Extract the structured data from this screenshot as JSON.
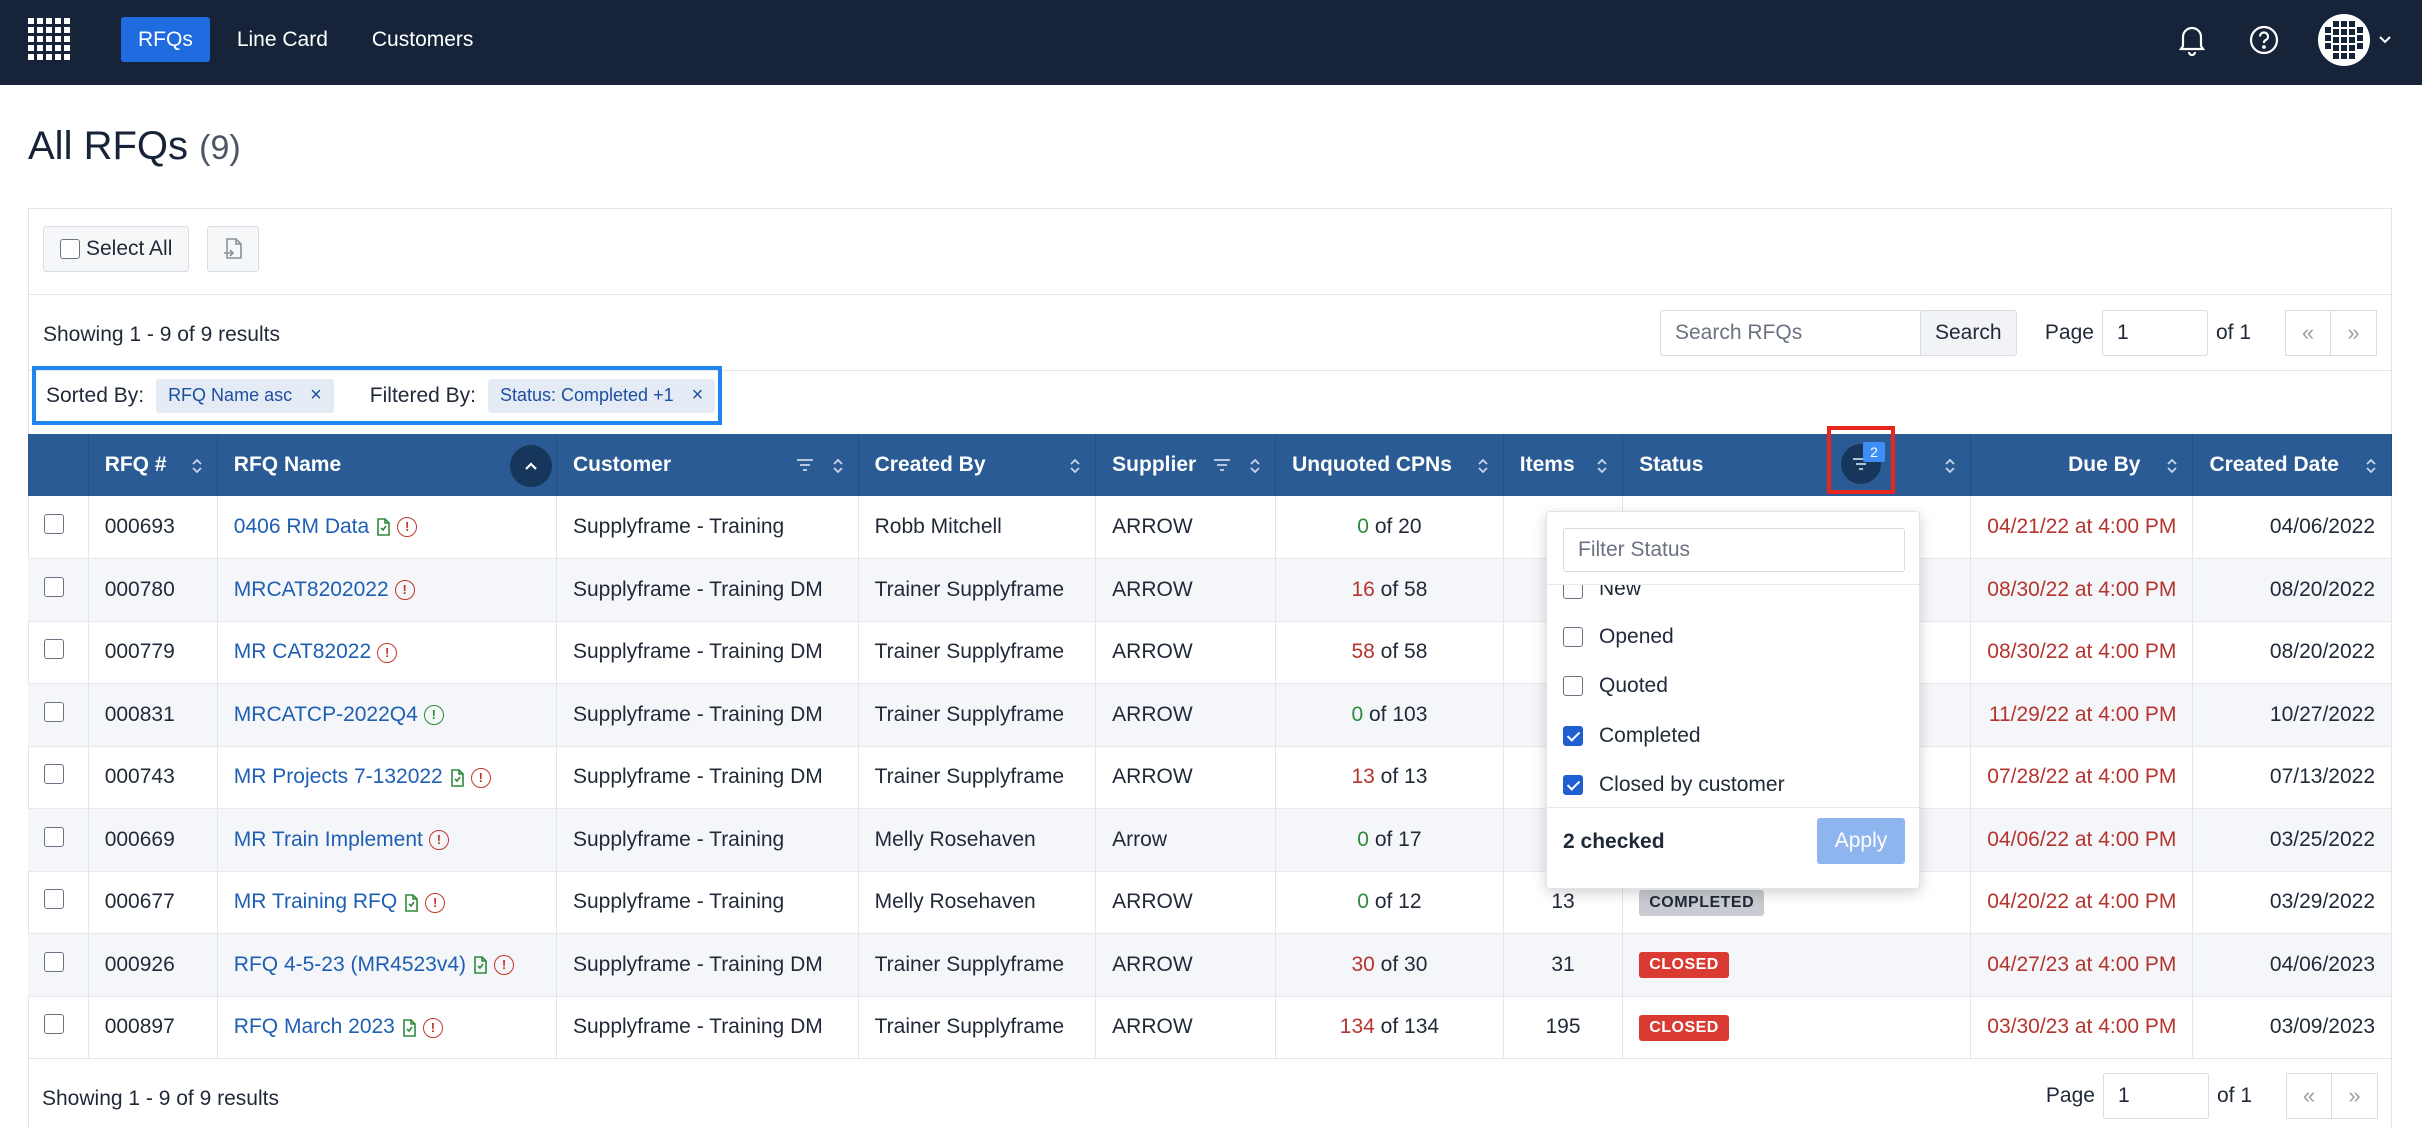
{
  "nav": {
    "links": [
      {
        "label": "RFQs",
        "active": true
      },
      {
        "label": "Line Card",
        "active": false
      },
      {
        "label": "Customers",
        "active": false
      }
    ],
    "icons": [
      "bell-icon",
      "help-icon",
      "avatar"
    ]
  },
  "page": {
    "title": "All RFQs",
    "count": "(9)"
  },
  "toolbar": {
    "select_all_label": "Select All"
  },
  "results": {
    "summary": "Showing 1 - 9 of 9 results",
    "search_placeholder": "Search RFQs",
    "search_button": "Search",
    "page_label": "Page",
    "page_value": "1",
    "page_of": "of 1",
    "prev": "«",
    "next": "»"
  },
  "chips": {
    "sorted_label": "Sorted By:",
    "sorted_value": "RFQ Name asc",
    "filtered_label": "Filtered By:",
    "filtered_value": "Status: Completed +1",
    "remove": "×"
  },
  "table": {
    "headers": [
      "RFQ #",
      "RFQ Name",
      "Customer",
      "Created By",
      "Supplier",
      "Unquoted CPNs",
      "Items",
      "Status",
      "Due By",
      "Created Date"
    ],
    "status_filter_count": "2",
    "rows": [
      {
        "id": "000693",
        "name": "0406 RM Data",
        "attachment": true,
        "info": "red",
        "customer": "Supplyframe - Training",
        "created_by": "Robb Mitchell",
        "supplier": "ARROW",
        "unquoted": "0",
        "unquoted_color": "green",
        "of": "of 20",
        "items": "",
        "status": "",
        "due": "04/21/22 at 4:00 PM",
        "created": "04/06/2022"
      },
      {
        "id": "000780",
        "name": "MRCAT8202022",
        "attachment": false,
        "info": "red",
        "customer": "Supplyframe - Training DM",
        "created_by": "Trainer Supplyframe",
        "supplier": "ARROW",
        "unquoted": "16",
        "unquoted_color": "red",
        "of": "of 58",
        "items": "",
        "status": "",
        "due": "08/30/22 at 4:00 PM",
        "created": "08/20/2022"
      },
      {
        "id": "000779",
        "name": "MR CAT82022",
        "attachment": false,
        "info": "red",
        "customer": "Supplyframe - Training DM",
        "created_by": "Trainer Supplyframe",
        "supplier": "ARROW",
        "unquoted": "58",
        "unquoted_color": "red",
        "of": "of 58",
        "items": "",
        "status": "",
        "due": "08/30/22 at 4:00 PM",
        "created": "08/20/2022"
      },
      {
        "id": "000831",
        "name": "MRCATCP-2022Q4",
        "attachment": false,
        "info": "green",
        "customer": "Supplyframe - Training DM",
        "created_by": "Trainer Supplyframe",
        "supplier": "ARROW",
        "unquoted": "0",
        "unquoted_color": "green",
        "of": "of 103",
        "items": "",
        "status": "",
        "due": "11/29/22 at 4:00 PM",
        "created": "10/27/2022"
      },
      {
        "id": "000743",
        "name": "MR Projects 7-132022",
        "attachment": true,
        "info": "red",
        "customer": "Supplyframe - Training DM",
        "created_by": "Trainer Supplyframe",
        "supplier": "ARROW",
        "unquoted": "13",
        "unquoted_color": "red",
        "of": "of 13",
        "items": "",
        "status": "",
        "due": "07/28/22 at 4:00 PM",
        "created": "07/13/2022"
      },
      {
        "id": "000669",
        "name": "MR Train Implement",
        "attachment": false,
        "info": "red",
        "customer": "Supplyframe - Training",
        "created_by": "Melly Rosehaven",
        "supplier": "Arrow",
        "unquoted": "0",
        "unquoted_color": "green",
        "of": "of 17",
        "items": "",
        "status": "",
        "due": "04/06/22 at 4:00 PM",
        "created": "03/25/2022"
      },
      {
        "id": "000677",
        "name": "MR Training RFQ",
        "attachment": true,
        "info": "red",
        "customer": "Supplyframe - Training",
        "created_by": "Melly Rosehaven",
        "supplier": "ARROW",
        "unquoted": "0",
        "unquoted_color": "green",
        "of": "of 12",
        "items": "13",
        "status": "COMPLETED",
        "due": "04/20/22 at 4:00 PM",
        "created": "03/29/2022"
      },
      {
        "id": "000926",
        "name": "RFQ 4-5-23 (MR4523v4)",
        "attachment": true,
        "info": "red",
        "customer": "Supplyframe - Training DM",
        "created_by": "Trainer Supplyframe",
        "supplier": "ARROW",
        "unquoted": "30",
        "unquoted_color": "red",
        "of": "of 30",
        "items": "31",
        "status": "CLOSED",
        "due": "04/27/23 at 4:00 PM",
        "created": "04/06/2023"
      },
      {
        "id": "000897",
        "name": "RFQ March 2023",
        "attachment": true,
        "info": "red",
        "customer": "Supplyframe - Training DM",
        "created_by": "Trainer Supplyframe",
        "supplier": "ARROW",
        "unquoted": "134",
        "unquoted_color": "red",
        "of": "of 134",
        "items": "195",
        "status": "CLOSED",
        "due": "03/30/23 at 4:00 PM",
        "created": "03/09/2023"
      }
    ]
  },
  "status_dropdown": {
    "placeholder": "Filter Status",
    "options": [
      {
        "label": "New",
        "checked": false
      },
      {
        "label": "Opened",
        "checked": false
      },
      {
        "label": "Quoted",
        "checked": false
      },
      {
        "label": "Completed",
        "checked": true
      },
      {
        "label": "Closed by customer",
        "checked": true
      }
    ],
    "checked_summary": "2 checked",
    "apply_label": "Apply"
  },
  "colors": {
    "nav_bg": "#162338",
    "nav_active": "#1f6be0",
    "table_header": "#2a5b94",
    "link": "#1f5fb3",
    "overdue": "#b5342e",
    "chip_highlight": "#1e86ee",
    "filter_highlight": "#e8261b"
  }
}
